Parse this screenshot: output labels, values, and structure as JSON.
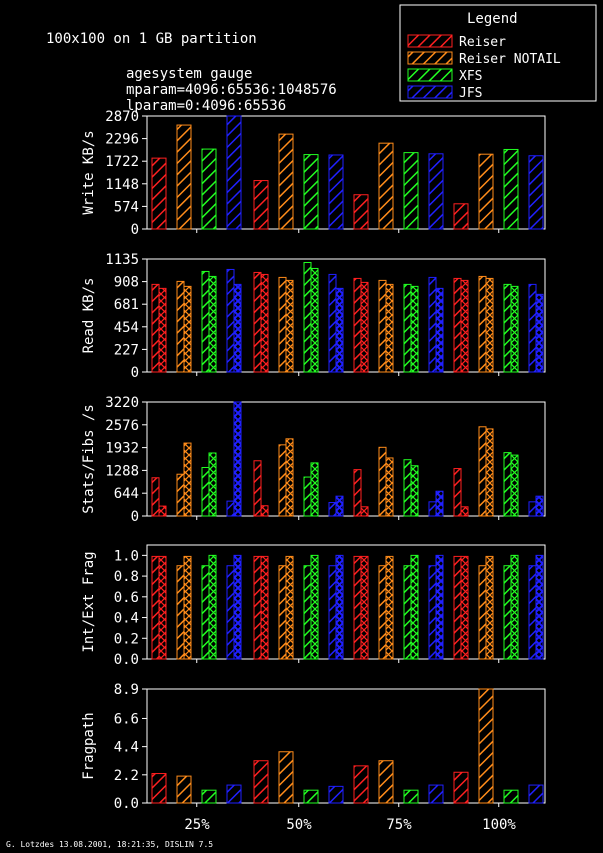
{
  "header": {
    "title": "100x100 on 1 GB partition",
    "lines": [
      "agesystem gauge",
      "mparam=4096:65536:1048576",
      "lparam=0:4096:65536"
    ]
  },
  "legend": {
    "title": "Legend",
    "items": [
      {
        "name": "Reiser",
        "color": "#ff2020"
      },
      {
        "name": "Reiser NOTAIL",
        "color": "#ff8c1a"
      },
      {
        "name": "XFS",
        "color": "#22ff22"
      },
      {
        "name": "JFS",
        "color": "#2020ff"
      }
    ]
  },
  "footer": "G. Lotzdes 13.08.2001, 18:21:35, DISLIN 7.5",
  "chart_data": [
    {
      "type": "bar",
      "ylabel": "Write KB/s",
      "categories": [
        "25%",
        "50%",
        "75%",
        "100%"
      ],
      "ylim": [
        0,
        2870
      ],
      "yticks": [
        0,
        574,
        1148,
        1722,
        2296,
        2870
      ],
      "ytick_labels": [
        "0",
        "574",
        "1148",
        "1722",
        "2296",
        "2870"
      ],
      "series": [
        {
          "name": "Reiser",
          "values": [
            1800,
            1230,
            870,
            640
          ]
        },
        {
          "name": "Reiser NOTAIL",
          "values": [
            2640,
            2410,
            2180,
            1900
          ]
        },
        {
          "name": "XFS",
          "values": [
            2030,
            1890,
            1940,
            2020
          ]
        },
        {
          "name": "JFS",
          "values": [
            2870,
            1880,
            1910,
            1860
          ]
        }
      ]
    },
    {
      "type": "bar",
      "ylabel": "Read KB/s",
      "categories": [
        "25%",
        "50%",
        "75%",
        "100%"
      ],
      "ylim": [
        0,
        1135
      ],
      "yticks": [
        0,
        227,
        454,
        681,
        908,
        1135
      ],
      "ytick_labels": [
        "0",
        "227",
        "454",
        "681",
        "908",
        "1135"
      ],
      "pairs": true,
      "series": [
        {
          "name": "Reiser",
          "values": [
            [
              880,
              840
            ],
            [
              1000,
              980
            ],
            [
              940,
              900
            ]
          ]
        },
        {
          "name": "Reiser NOTAIL",
          "values": [
            [
              910,
              860
            ],
            [
              950,
              920
            ],
            [
              920,
              880
            ]
          ]
        },
        {
          "name": "XFS",
          "values": [
            [
              1010,
              960
            ],
            [
              1100,
              1040
            ],
            [
              880,
              860
            ]
          ]
        },
        {
          "name": "JFS",
          "values": [
            [
              1030,
              880
            ],
            [
              980,
              840
            ],
            [
              950,
              840
            ]
          ]
        }
      ],
      "series_100": [
        {
          "name": "Reiser",
          "values": [
            940,
            920
          ]
        },
        {
          "name": "Reiser NOTAIL",
          "values": [
            960,
            940
          ]
        },
        {
          "name": "XFS",
          "values": [
            880,
            860
          ]
        },
        {
          "name": "JFS",
          "values": [
            880,
            780
          ]
        }
      ]
    },
    {
      "type": "bar",
      "ylabel": "Stats/Fibs /s",
      "categories": [
        "25%",
        "50%",
        "75%",
        "100%"
      ],
      "ylim": [
        0,
        3220
      ],
      "yticks": [
        0,
        644,
        1288,
        1932,
        2576,
        3220
      ],
      "ytick_labels": [
        "0",
        "644",
        "1288",
        "1932",
        "2576",
        "3220"
      ],
      "series": [
        {
          "name": "Reiser",
          "values": [
            [
              1080,
              280
            ],
            [
              1560,
              290
            ],
            [
              1310,
              260
            ],
            [
              1340,
              260
            ]
          ]
        },
        {
          "name": "Reiser NOTAIL",
          "values": [
            [
              1180,
              2060
            ],
            [
              2010,
              2180
            ],
            [
              1940,
              1640
            ],
            [
              2520,
              2460
            ]
          ]
        },
        {
          "name": "XFS",
          "values": [
            [
              1370,
              1780
            ],
            [
              1100,
              1500
            ],
            [
              1590,
              1420
            ],
            [
              1790,
              1720
            ]
          ]
        },
        {
          "name": "JFS",
          "values": [
            [
              420,
              3220
            ],
            [
              380,
              560
            ],
            [
              400,
              700
            ],
            [
              400,
              560
            ]
          ]
        }
      ]
    },
    {
      "type": "bar",
      "ylabel": "Int/Ext Frag",
      "categories": [
        "25%",
        "50%",
        "75%",
        "100%"
      ],
      "ylim": [
        0,
        1.1
      ],
      "yticks": [
        0,
        0.2,
        0.4,
        0.6,
        0.8,
        1.0
      ],
      "ytick_labels": [
        "0.0",
        "0.2",
        "0.4",
        "0.6",
        "0.8",
        "1.0"
      ],
      "series": [
        {
          "name": "Reiser",
          "values": [
            [
              0.99,
              0.99
            ],
            [
              0.99,
              0.99
            ],
            [
              0.99,
              0.99
            ],
            [
              0.99,
              0.99
            ]
          ]
        },
        {
          "name": "Reiser NOTAIL",
          "values": [
            [
              0.9,
              0.99
            ],
            [
              0.9,
              0.99
            ],
            [
              0.9,
              0.99
            ],
            [
              0.9,
              0.99
            ]
          ]
        },
        {
          "name": "XFS",
          "values": [
            [
              0.9,
              1.0
            ],
            [
              0.9,
              1.0
            ],
            [
              0.9,
              1.0
            ],
            [
              0.9,
              1.0
            ]
          ]
        },
        {
          "name": "JFS",
          "values": [
            [
              0.9,
              1.0
            ],
            [
              0.9,
              1.0
            ],
            [
              0.9,
              1.0
            ],
            [
              0.9,
              1.0
            ]
          ]
        }
      ]
    },
    {
      "type": "bar",
      "ylabel": "Fragpath",
      "categories": [
        "25%",
        "50%",
        "75%",
        "100%"
      ],
      "ylim": [
        0,
        8.9
      ],
      "yticks": [
        0,
        2.2,
        4.4,
        6.6,
        8.9
      ],
      "ytick_labels": [
        "0.0",
        "2.2",
        "4.4",
        "6.6",
        "8.9"
      ],
      "series": [
        {
          "name": "Reiser",
          "values": [
            2.3,
            3.3,
            2.9,
            2.4
          ]
        },
        {
          "name": "Reiser NOTAIL",
          "values": [
            2.1,
            4.0,
            3.3,
            8.9
          ]
        },
        {
          "name": "XFS",
          "values": [
            1.0,
            1.0,
            1.0,
            1.0
          ]
        },
        {
          "name": "JFS",
          "values": [
            1.4,
            1.3,
            1.4,
            1.4
          ]
        }
      ]
    }
  ]
}
